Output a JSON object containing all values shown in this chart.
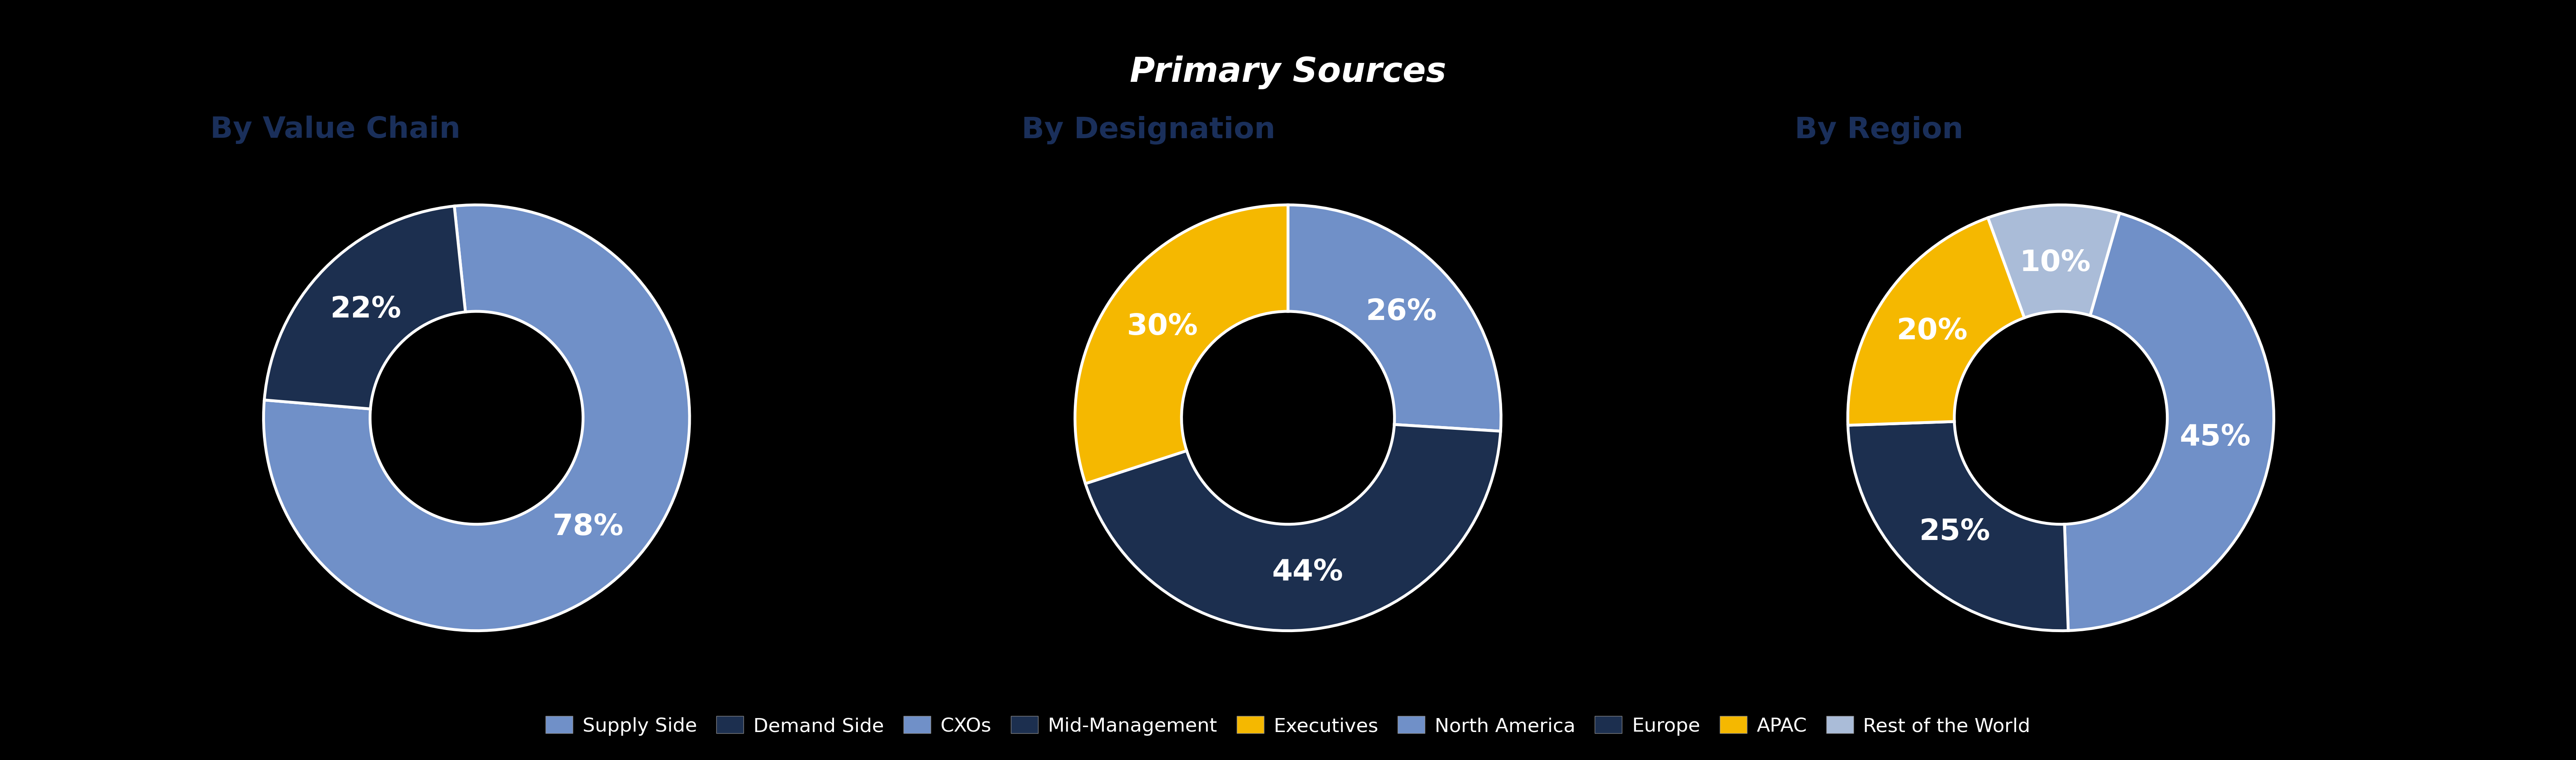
{
  "title": "Primary Sources",
  "title_bg_color": "#2a9534",
  "title_text_color": "#ffffff",
  "background_color": "#000000",
  "chart_bg_color": "#000000",
  "subtitle_color": "#1a2f5a",
  "chart1_title": "By Value Chain",
  "chart1_values": [
    78,
    22
  ],
  "chart1_labels": [
    "78%",
    "22%"
  ],
  "chart1_colors": [
    "#7090c8",
    "#1c2f4f"
  ],
  "chart1_startangle": 96,
  "chart2_title": "By Designation",
  "chart2_values": [
    26,
    44,
    30
  ],
  "chart2_labels": [
    "26%",
    "44%",
    "30%"
  ],
  "chart2_colors": [
    "#7090c8",
    "#1c2f4f",
    "#f5b800"
  ],
  "chart2_startangle": 90,
  "chart3_title": "By Region",
  "chart3_values": [
    45,
    25,
    20,
    10
  ],
  "chart3_labels": [
    "45%",
    "25%",
    "20%",
    "10%"
  ],
  "chart3_colors": [
    "#7090c8",
    "#1c2f4f",
    "#f5b800",
    "#aabcd8"
  ],
  "chart3_startangle": 74,
  "legend_items": [
    {
      "label": "Supply Side",
      "color": "#7090c8"
    },
    {
      "label": "Demand Side",
      "color": "#1c2f4f"
    },
    {
      "label": "CXOs",
      "color": "#7090c8"
    },
    {
      "label": "Mid-Management",
      "color": "#1c2f4f"
    },
    {
      "label": "Executives",
      "color": "#f5b800"
    },
    {
      "label": "North America",
      "color": "#7090c8"
    },
    {
      "label": "Europe",
      "color": "#1c2f4f"
    },
    {
      "label": "APAC",
      "color": "#f5b800"
    },
    {
      "label": "Rest of the World",
      "color": "#aabcd8"
    }
  ],
  "wedge_edge_color": "#ffffff",
  "wedge_linewidth": 5,
  "label_font_size": 52,
  "title_font_size": 60,
  "subtitle_font_size": 52,
  "legend_font_size": 34
}
